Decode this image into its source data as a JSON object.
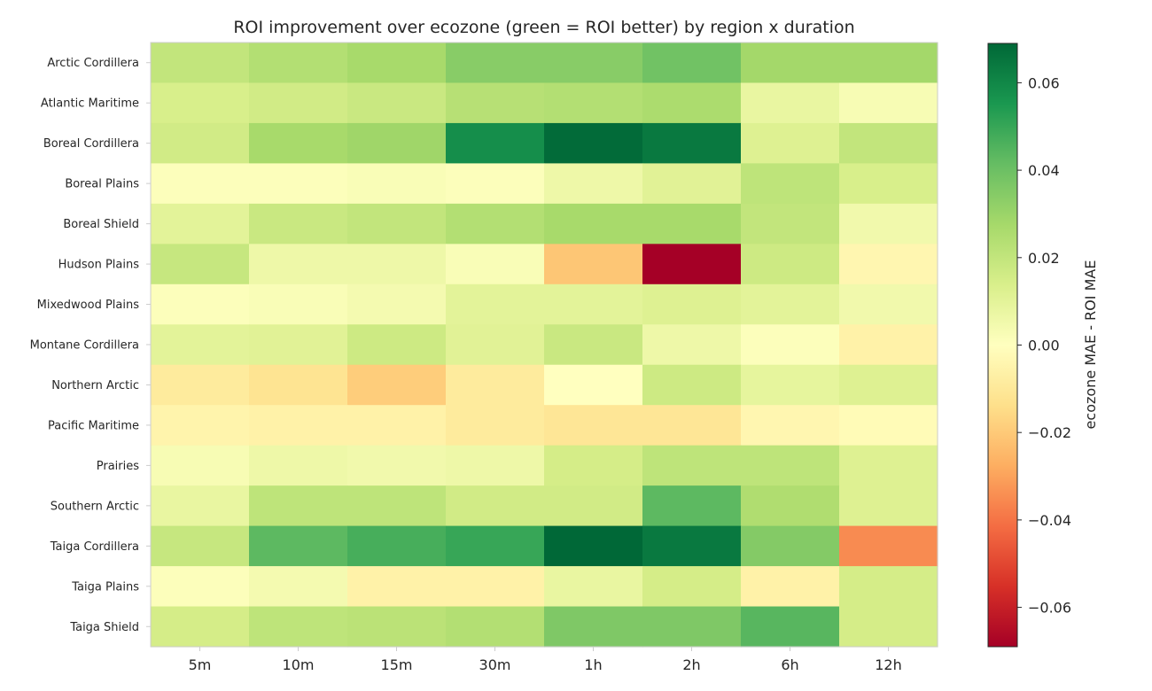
{
  "chart_data": {
    "type": "heatmap",
    "title": "ROI improvement over ecozone (green = ROI better) by region x duration",
    "x_categories": [
      "5m",
      "10m",
      "15m",
      "30m",
      "1h",
      "2h",
      "6h",
      "12h"
    ],
    "y_categories": [
      "Arctic Cordillera",
      "Atlantic Maritime",
      "Boreal Cordillera",
      "Boreal Plains",
      "Boreal Shield",
      "Hudson Plains",
      "Mixedwood Plains",
      "Montane Cordillera",
      "Northern Arctic",
      "Pacific Maritime",
      "Prairies",
      "Southern Arctic",
      "Taiga Cordillera",
      "Taiga Plains",
      "Taiga Shield"
    ],
    "values": [
      [
        0.02,
        0.024,
        0.027,
        0.034,
        0.034,
        0.039,
        0.028,
        0.028
      ],
      [
        0.014,
        0.016,
        0.018,
        0.023,
        0.024,
        0.026,
        0.008,
        0.003
      ],
      [
        0.016,
        0.027,
        0.029,
        0.058,
        0.068,
        0.064,
        0.012,
        0.02
      ],
      [
        0.001,
        0.001,
        0.002,
        0.001,
        0.006,
        0.011,
        0.021,
        0.014
      ],
      [
        0.01,
        0.018,
        0.02,
        0.024,
        0.027,
        0.027,
        0.02,
        0.005
      ],
      [
        0.019,
        0.006,
        0.006,
        0.002,
        -0.021,
        -0.069,
        0.017,
        -0.004
      ],
      [
        0.001,
        0.002,
        0.004,
        0.01,
        0.01,
        0.012,
        0.01,
        0.005
      ],
      [
        0.01,
        0.011,
        0.017,
        0.011,
        0.018,
        0.006,
        0.001,
        -0.006
      ],
      [
        -0.009,
        -0.012,
        -0.019,
        -0.009,
        0.0,
        0.017,
        0.009,
        0.012
      ],
      [
        -0.005,
        -0.006,
        -0.006,
        -0.009,
        -0.011,
        -0.011,
        -0.004,
        -0.002
      ],
      [
        0.003,
        0.006,
        0.005,
        0.006,
        0.015,
        0.021,
        0.021,
        0.012
      ],
      [
        0.008,
        0.021,
        0.021,
        0.016,
        0.016,
        0.043,
        0.025,
        0.012
      ],
      [
        0.019,
        0.043,
        0.047,
        0.05,
        0.069,
        0.064,
        0.035,
        -0.035
      ],
      [
        0.001,
        0.004,
        -0.006,
        -0.006,
        0.008,
        0.015,
        -0.006,
        0.015
      ],
      [
        0.015,
        0.021,
        0.022,
        0.024,
        0.036,
        0.036,
        0.044,
        0.015
      ]
    ],
    "colorbar": {
      "label": "ecozone MAE - ROI MAE",
      "vmin": -0.069,
      "vmax": 0.069,
      "ticks": [
        0.06,
        0.04,
        0.02,
        0.0,
        -0.02,
        -0.04,
        -0.06
      ],
      "tick_labels": [
        "0.06",
        "0.04",
        "0.02",
        "0.00",
        "−0.02",
        "−0.04",
        "−0.06"
      ],
      "colormap": "RdYlGn"
    }
  }
}
